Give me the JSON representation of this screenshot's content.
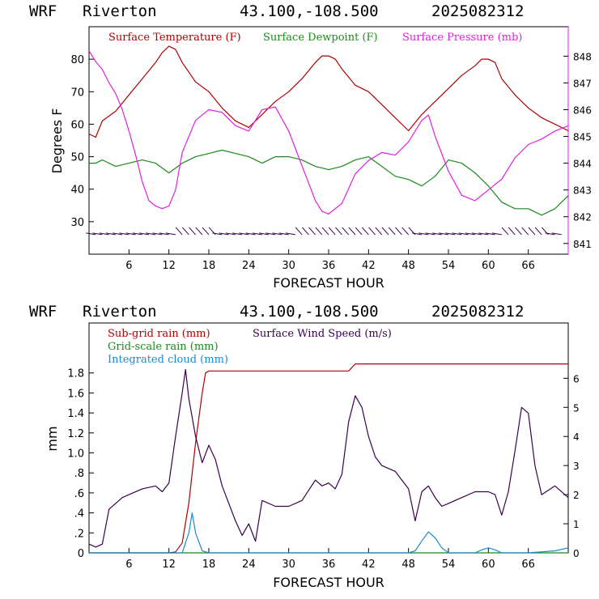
{
  "colors": {
    "temperature": "#b00000",
    "dewpoint": "#1a8a1a",
    "pressure": "#e020e0",
    "wind": "#3a0050",
    "subgrid": "#b00000",
    "gridscale": "#1a8a1a",
    "cloud": "#1a8ad0",
    "axis": "#000000"
  },
  "chart_data": [
    {
      "type": "line",
      "header": {
        "model": "WRF",
        "site": "Riverton",
        "coords": "43.100,-108.500",
        "run": "2025082312"
      },
      "xlabel": "FORECAST HOUR",
      "ylabel": "Degrees F",
      "xlim": [
        0,
        72
      ],
      "xticks": [
        6,
        12,
        18,
        24,
        30,
        36,
        42,
        48,
        54,
        60,
        66
      ],
      "xtick_labels": [
        "6",
        "12",
        "18",
        "24",
        "30",
        "36",
        "42",
        "48",
        "54",
        "60",
        "66"
      ],
      "ylim": [
        20,
        90
      ],
      "yticks": [
        30,
        40,
        50,
        60,
        70,
        80
      ],
      "ytick_labels": [
        "30",
        "40",
        "50",
        "60",
        "70",
        "80"
      ],
      "y2lim": [
        840.6,
        849.1
      ],
      "y2ticks": [
        841,
        842,
        843,
        844,
        845,
        846,
        847,
        848
      ],
      "y2tick_labels": [
        "841",
        "842",
        "843",
        "844",
        "845",
        "846",
        "847",
        "848"
      ],
      "legend": [
        {
          "label": "Surface Temperature (F)",
          "color": "#b00000"
        },
        {
          "label": "Surface Dewpoint (F)",
          "color": "#1a8a1a"
        },
        {
          "label": "Surface Pressure (mb)",
          "color": "#e020e0"
        }
      ],
      "series": [
        {
          "name": "Surface Temperature (F)",
          "color": "#b00000",
          "axis": "left",
          "x": [
            0,
            1,
            2,
            4,
            6,
            8,
            10,
            11,
            12,
            13,
            14,
            16,
            18,
            20,
            22,
            24,
            26,
            28,
            30,
            32,
            34,
            35,
            36,
            37,
            38,
            40,
            42,
            44,
            46,
            48,
            50,
            52,
            54,
            56,
            58,
            59,
            60,
            61,
            62,
            64,
            66,
            68,
            70,
            72
          ],
          "y": [
            57,
            56,
            61,
            64,
            69,
            74,
            79,
            82,
            84,
            83,
            79,
            73,
            70,
            65,
            61,
            59,
            63,
            67,
            70,
            74,
            79,
            81,
            81,
            80,
            77,
            72,
            70,
            66,
            62,
            58,
            63,
            67,
            71,
            75,
            78,
            80,
            80,
            79,
            74,
            69,
            65,
            62,
            60,
            58
          ]
        },
        {
          "name": "Surface Dewpoint (F)",
          "color": "#1a8a1a",
          "axis": "left",
          "x": [
            0,
            1,
            2,
            4,
            6,
            8,
            10,
            12,
            14,
            16,
            18,
            20,
            22,
            24,
            26,
            28,
            30,
            32,
            34,
            36,
            38,
            40,
            42,
            44,
            46,
            48,
            50,
            52,
            54,
            56,
            58,
            60,
            62,
            64,
            66,
            68,
            70,
            72
          ],
          "y": [
            48,
            48,
            49,
            47,
            48,
            49,
            48,
            45,
            48,
            50,
            51,
            52,
            51,
            50,
            48,
            50,
            50,
            49,
            47,
            46,
            47,
            49,
            50,
            47,
            44,
            43,
            41,
            44,
            49,
            48,
            45,
            41,
            36,
            34,
            34,
            32,
            34,
            38
          ]
        },
        {
          "name": "Surface Pressure (mb)",
          "color": "#e020e0",
          "axis": "right",
          "x": [
            0,
            1,
            2,
            3,
            4,
            5,
            6,
            7,
            8,
            9,
            10,
            11,
            12,
            13,
            14,
            16,
            18,
            20,
            22,
            24,
            26,
            28,
            30,
            32,
            34,
            35,
            36,
            38,
            40,
            42,
            44,
            46,
            48,
            50,
            51,
            52,
            54,
            56,
            58,
            60,
            62,
            64,
            66,
            68,
            70,
            72
          ],
          "y": [
            848.2,
            847.8,
            847.5,
            847.0,
            846.6,
            846.0,
            845.2,
            844.3,
            843.3,
            842.6,
            842.4,
            842.3,
            842.4,
            843.0,
            844.4,
            845.6,
            846.0,
            845.9,
            845.4,
            845.2,
            846.0,
            846.1,
            845.2,
            843.9,
            842.6,
            842.2,
            842.1,
            842.5,
            843.6,
            844.1,
            844.4,
            844.3,
            844.8,
            845.6,
            845.8,
            845.0,
            843.7,
            842.8,
            842.6,
            843.0,
            843.4,
            844.2,
            844.7,
            844.9,
            845.2,
            845.4
          ]
        }
      ],
      "wind_barbs_row": 26
    },
    {
      "type": "line",
      "header": {
        "model": "WRF",
        "site": "Riverton",
        "coords": "43.100,-108.500",
        "run": "2025082312"
      },
      "xlabel": "FORECAST HOUR",
      "ylabel": "mm",
      "xlim": [
        0,
        72
      ],
      "xticks": [
        6,
        12,
        18,
        24,
        30,
        36,
        42,
        48,
        54,
        60,
        66
      ],
      "xtick_labels": [
        "6",
        "12",
        "18",
        "24",
        "30",
        "36",
        "42",
        "48",
        "54",
        "60",
        "66"
      ],
      "ylim": [
        0,
        2.3
      ],
      "yticks": [
        0,
        0.2,
        0.4,
        0.6,
        0.8,
        1.0,
        1.2,
        1.4,
        1.6,
        1.8
      ],
      "ytick_labels": [
        "0",
        ".2",
        ".4",
        ".6",
        ".8",
        "1.0",
        "1.2",
        "1.4",
        "1.6",
        "1.8"
      ],
      "y2lim": [
        0,
        7.9
      ],
      "y2ticks": [
        0,
        1,
        2,
        3,
        4,
        5,
        6
      ],
      "y2tick_labels": [
        "0",
        "1",
        "2",
        "3",
        "4",
        "5",
        "6"
      ],
      "legend": [
        {
          "label": "Sub-grid rain (mm)",
          "color": "#b00000"
        },
        {
          "label": "Grid-scale rain (mm)",
          "color": "#1a8a1a"
        },
        {
          "label": "Integrated cloud (mm)",
          "color": "#1a8ad0"
        },
        {
          "label": "Surface Wind Speed (m/s)",
          "color": "#3a0050"
        }
      ],
      "series": [
        {
          "name": "Sub-grid rain (mm)",
          "color": "#b00000",
          "axis": "left",
          "x": [
            0,
            12,
            13,
            14,
            15,
            16,
            17,
            17.5,
            18,
            24,
            30,
            36,
            39,
            40,
            42,
            48,
            54,
            60,
            66,
            72
          ],
          "y": [
            0,
            0,
            0.01,
            0.1,
            0.5,
            1.1,
            1.6,
            1.8,
            1.82,
            1.82,
            1.82,
            1.82,
            1.82,
            1.89,
            1.89,
            1.89,
            1.89,
            1.89,
            1.89,
            1.89
          ]
        },
        {
          "name": "Grid-scale rain (mm)",
          "color": "#1a8a1a",
          "axis": "left",
          "x": [
            0,
            12,
            24,
            36,
            48,
            60,
            72
          ],
          "y": [
            0,
            0,
            0,
            0,
            0,
            0,
            0
          ]
        },
        {
          "name": "Integrated cloud (mm)",
          "color": "#1a8ad0",
          "axis": "left",
          "x": [
            0,
            12,
            14,
            15,
            15.5,
            16,
            17,
            18,
            24,
            30,
            36,
            42,
            48,
            49,
            50,
            51,
            52,
            53,
            54,
            58,
            59,
            60,
            61,
            62,
            66,
            70,
            72
          ],
          "y": [
            0,
            0,
            0,
            0.2,
            0.4,
            0.2,
            0.02,
            0,
            0,
            0,
            0,
            0,
            0,
            0.02,
            0.12,
            0.21,
            0.15,
            0.05,
            0,
            0,
            0.03,
            0.05,
            0.03,
            0,
            0,
            0.02,
            0.05
          ]
        },
        {
          "name": "Surface Wind Speed (m/s)",
          "color": "#3a0050",
          "axis": "right",
          "x": [
            0,
            1,
            2,
            3,
            4,
            5,
            6,
            8,
            10,
            11,
            12,
            13,
            14,
            14.5,
            15,
            16,
            17,
            18,
            19,
            20,
            22,
            23,
            24,
            25,
            26,
            28,
            30,
            32,
            34,
            35,
            36,
            37,
            38,
            39,
            40,
            41,
            42,
            43,
            44,
            46,
            48,
            49,
            50,
            51,
            52,
            53,
            54,
            56,
            58,
            60,
            61,
            62,
            63,
            64,
            65,
            66,
            67,
            68,
            70,
            72
          ],
          "y": [
            0.3,
            0.2,
            0.3,
            1.5,
            1.7,
            1.9,
            2.0,
            2.2,
            2.3,
            2.1,
            2.4,
            4.0,
            5.5,
            6.3,
            5.3,
            4.0,
            3.1,
            3.7,
            3.2,
            2.3,
            1.1,
            0.6,
            1.0,
            0.4,
            1.8,
            1.6,
            1.6,
            1.8,
            2.5,
            2.3,
            2.4,
            2.2,
            2.7,
            4.5,
            5.4,
            5.0,
            4.0,
            3.3,
            3.0,
            2.8,
            2.2,
            1.1,
            2.1,
            2.3,
            1.9,
            1.6,
            1.7,
            1.9,
            2.1,
            2.1,
            2.0,
            1.3,
            2.1,
            3.5,
            5.0,
            4.8,
            3.0,
            2.0,
            2.3,
            1.9
          ]
        }
      ]
    }
  ]
}
